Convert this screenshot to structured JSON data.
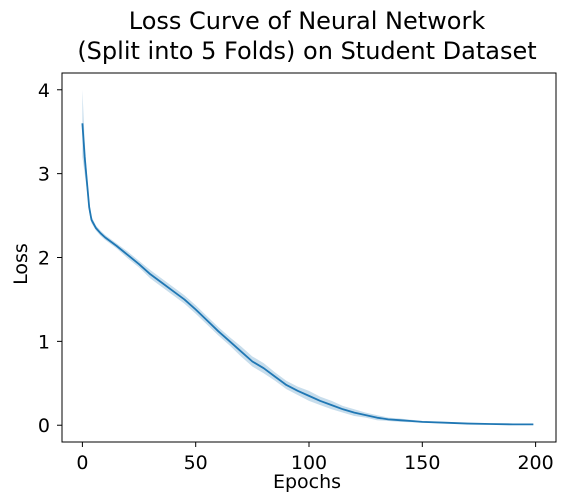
{
  "chart_data": {
    "type": "line",
    "title_line1": "Loss Curve of Neural Network",
    "title_line2": "(Split into 5 Folds) on Student Dataset",
    "xlabel": "Epochs",
    "ylabel": "Loss",
    "xlim": [
      -9,
      209
    ],
    "ylim": [
      -0.2,
      4.2
    ],
    "xticks": [
      0,
      50,
      100,
      150,
      200
    ],
    "yticks": [
      0,
      1,
      2,
      3,
      4
    ],
    "grid": false,
    "line_color": "#1f77b4",
    "band_color": "#1f77b4",
    "series": [
      {
        "x": [
          0,
          1,
          2,
          3,
          4,
          6,
          8,
          10,
          15,
          20,
          25,
          30,
          35,
          40,
          45,
          50,
          55,
          60,
          65,
          70,
          75,
          80,
          85,
          90,
          95,
          100,
          105,
          110,
          115,
          120,
          125,
          130,
          135,
          140,
          145,
          150,
          160,
          170,
          180,
          190,
          199
        ],
        "y": [
          3.6,
          3.2,
          2.9,
          2.6,
          2.45,
          2.35,
          2.29,
          2.24,
          2.14,
          2.03,
          1.92,
          1.8,
          1.7,
          1.6,
          1.5,
          1.38,
          1.25,
          1.12,
          1.0,
          0.88,
          0.76,
          0.68,
          0.58,
          0.48,
          0.41,
          0.35,
          0.29,
          0.24,
          0.19,
          0.15,
          0.12,
          0.09,
          0.07,
          0.06,
          0.05,
          0.04,
          0.03,
          0.02,
          0.015,
          0.01,
          0.01
        ],
        "band": [
          0.4,
          0.2,
          0.1,
          0.06,
          0.04,
          0.03,
          0.03,
          0.03,
          0.03,
          0.04,
          0.04,
          0.05,
          0.05,
          0.05,
          0.05,
          0.05,
          0.05,
          0.05,
          0.05,
          0.06,
          0.06,
          0.06,
          0.05,
          0.05,
          0.05,
          0.06,
          0.05,
          0.05,
          0.04,
          0.04,
          0.03,
          0.03,
          0.02,
          0.02,
          0.015,
          0.01,
          0.008,
          0.006,
          0.005,
          0.004,
          0.004
        ]
      }
    ]
  }
}
